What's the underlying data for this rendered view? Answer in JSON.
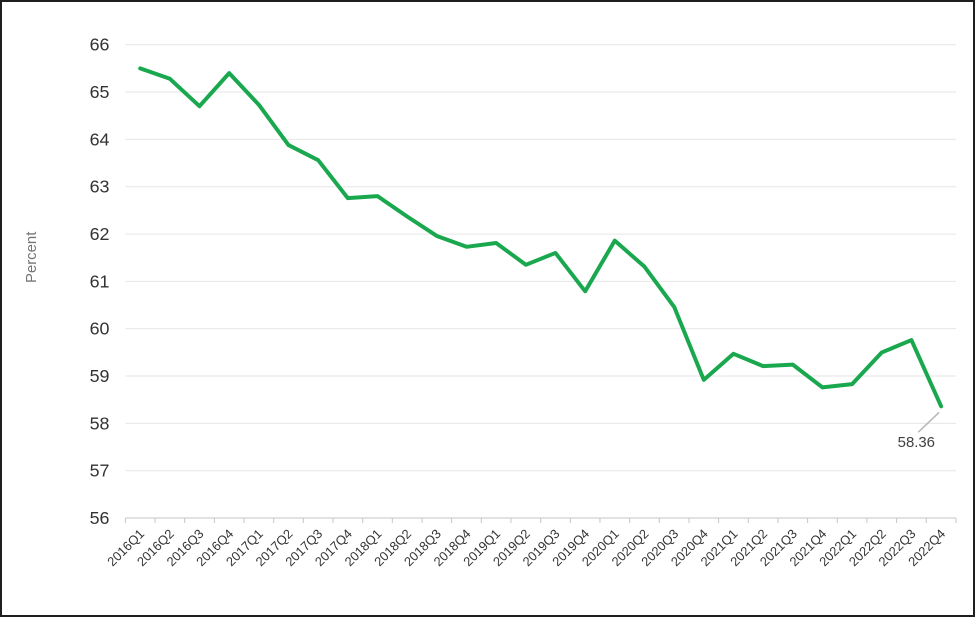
{
  "chart_data": {
    "type": "line",
    "title": "",
    "xlabel": "",
    "ylabel": "Percent",
    "ylim": [
      56,
      66
    ],
    "y_ticks": [
      56,
      57,
      58,
      59,
      60,
      61,
      62,
      63,
      64,
      65,
      66
    ],
    "grid": true,
    "legend": "none",
    "series_color": "#1aa84f",
    "categories": [
      "2016Q1",
      "2016Q2",
      "2016Q3",
      "2016Q4",
      "2017Q1",
      "2017Q2",
      "2017Q3",
      "2017Q4",
      "2018Q1",
      "2018Q2",
      "2018Q3",
      "2018Q4",
      "2019Q1",
      "2019Q2",
      "2019Q3",
      "2019Q4",
      "2020Q1",
      "2020Q2",
      "2020Q3",
      "2020Q4",
      "2021Q1",
      "2021Q2",
      "2021Q3",
      "2021Q4",
      "2022Q1",
      "2022Q2",
      "2022Q3",
      "2022Q4"
    ],
    "values": [
      65.5,
      65.28,
      64.7,
      65.4,
      64.73,
      63.88,
      63.56,
      62.76,
      62.8,
      62.37,
      61.96,
      61.73,
      61.81,
      61.35,
      61.6,
      60.79,
      61.86,
      61.31,
      60.46,
      58.92,
      59.47,
      59.21,
      59.24,
      58.76,
      58.83,
      59.5,
      59.76,
      58.36
    ],
    "annotation": {
      "text": "58.36",
      "category": "2022Q4",
      "value": 58.36
    }
  },
  "colors": {
    "line": "#1aa84f",
    "gridline": "#e6e6e6",
    "axis": "#c6c6c6",
    "tick_label": "#333333",
    "axis_title": "#757575",
    "annotation_text": "#404040",
    "leader_line": "#b7b7b7",
    "frame_border": "#1f1f1f",
    "background": "#ffffff"
  }
}
